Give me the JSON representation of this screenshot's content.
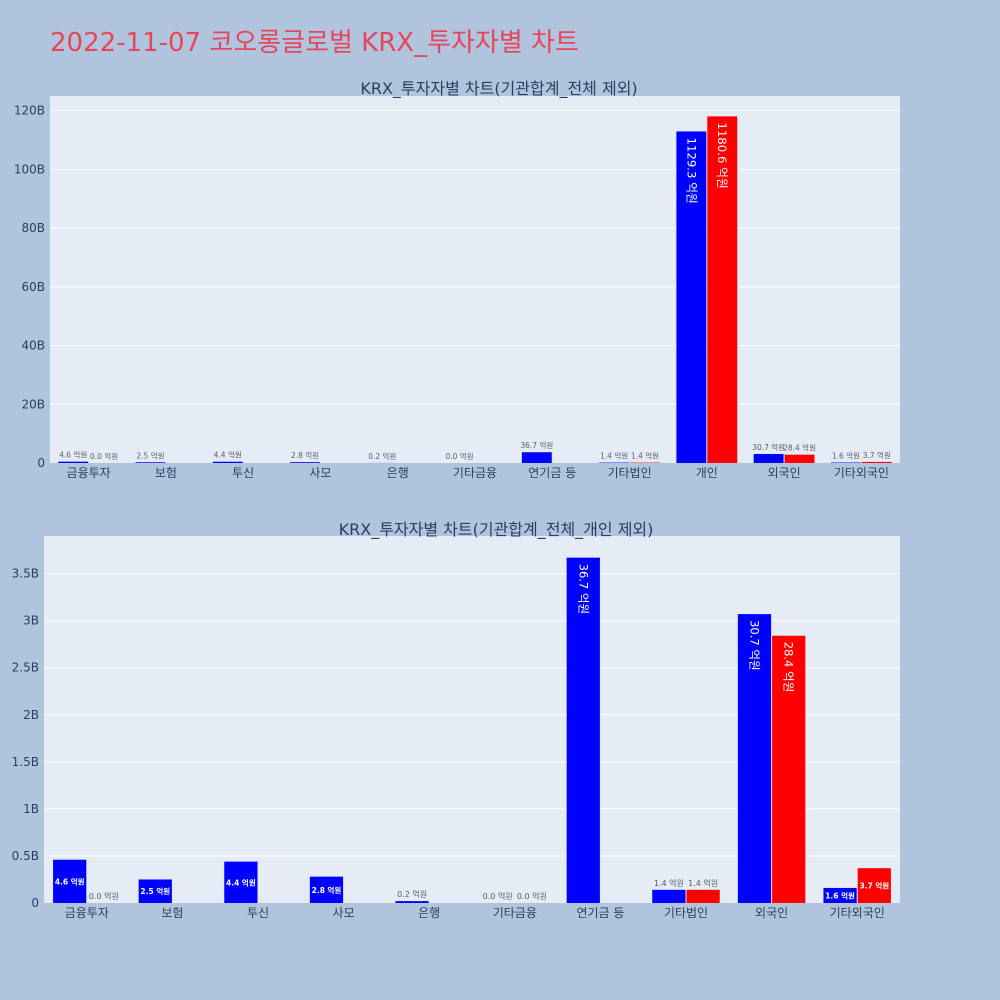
{
  "title": "2022-11-07 코오롱글로벌 KRX_투자자별 차트",
  "colors": {
    "buy": "#0000ff",
    "sell": "#ff0000",
    "plot_bg": "#e5ecf6",
    "page_bg": "#b0c4de",
    "title": "#e8455a"
  },
  "chart_data": [
    {
      "type": "bar",
      "title": "KRX_투자자별 차트(기관합계_전체 제외)",
      "categories": [
        "금융투자",
        "보험",
        "투신",
        "사모",
        "은행",
        "기타금융",
        "연기금 등",
        "기타법인",
        "개인",
        "외국인",
        "기타외국인"
      ],
      "series": [
        {
          "values": [
            0.46,
            0.25,
            0.44,
            0.28,
            0.02,
            0.0,
            3.67,
            0.14,
            112.93,
            3.07,
            0.16
          ]
        },
        {
          "values": [
            0.0,
            null,
            null,
            null,
            null,
            null,
            null,
            0.14,
            118.06,
            2.84,
            0.37
          ]
        }
      ],
      "labels": [
        [
          "4.6 억원",
          "2.5 억원",
          "4.4 억원",
          "2.8 억원",
          "0.2 억원",
          "0.0 억원",
          "36.7 억원",
          "1.4 억원",
          "1129.3 억원",
          "30.7 억원",
          "1.6 억원"
        ],
        [
          "0.0 억원",
          null,
          null,
          null,
          null,
          null,
          null,
          "1.4 억원",
          "1180.6 억원",
          "28.4 억원",
          "3.7 억원"
        ]
      ],
      "y_unit": "B",
      "ylim": [
        0,
        125
      ],
      "yticks": [
        0,
        20,
        40,
        60,
        80,
        100,
        120
      ],
      "ytick_labels": [
        "0",
        "20B",
        "40B",
        "60B",
        "80B",
        "100B",
        "120B"
      ],
      "grid": true
    },
    {
      "type": "bar",
      "title": "KRX_투자자별 차트(기관합계_전체_개인 제외)",
      "categories": [
        "금융투자",
        "보험",
        "투신",
        "사모",
        "은행",
        "기타금융",
        "연기금 등",
        "기타법인",
        "외국인",
        "기타외국인"
      ],
      "series": [
        {
          "values": [
            0.46,
            0.25,
            0.44,
            0.28,
            0.02,
            0.0,
            3.67,
            0.14,
            3.07,
            0.16
          ]
        },
        {
          "values": [
            0.0,
            null,
            null,
            null,
            null,
            0.0,
            null,
            0.14,
            2.84,
            0.37
          ]
        }
      ],
      "labels": [
        [
          "4.6 억원",
          "2.5 억원",
          "4.4 억원",
          "2.8 억원",
          "0.2 억원",
          "0.0 억원",
          "36.7 억원",
          "1.4 억원",
          "30.7 억원",
          "1.6 억원"
        ],
        [
          "0.0 억원",
          null,
          null,
          null,
          null,
          "0.0 억원",
          null,
          "1.4 억원",
          "28.4 억원",
          "3.7 억원"
        ]
      ],
      "y_unit": "B",
      "ylim": [
        0,
        3.9
      ],
      "yticks": [
        0,
        0.5,
        1,
        1.5,
        2,
        2.5,
        3,
        3.5
      ],
      "ytick_labels": [
        "0",
        "0.5B",
        "1B",
        "1.5B",
        "2B",
        "2.5B",
        "3B",
        "3.5B"
      ],
      "grid": true
    }
  ]
}
